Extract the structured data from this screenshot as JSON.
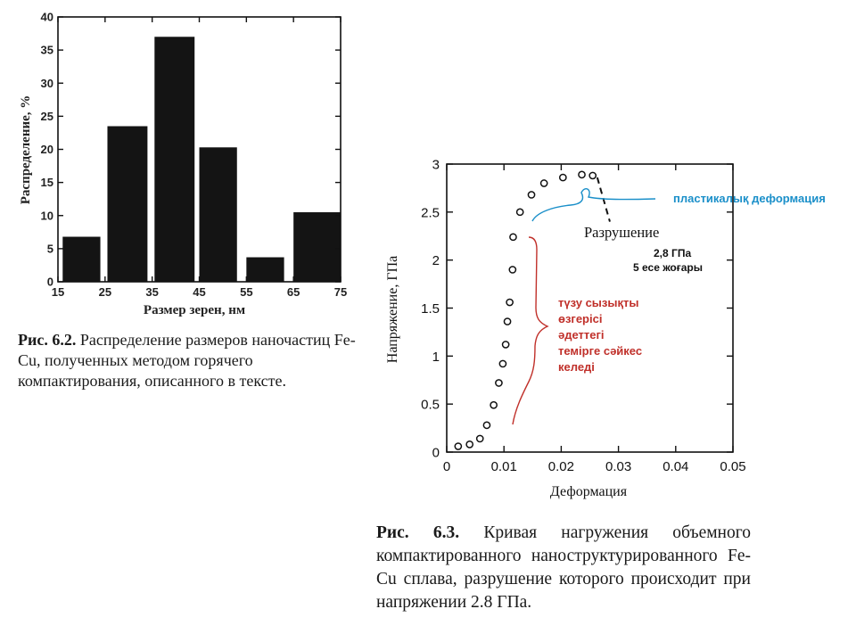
{
  "chart_data": [
    {
      "type": "bar",
      "xlabel": "Размер зерен, нм",
      "ylabel": "Распределение, %",
      "xticks": [
        "15",
        "25",
        "35",
        "45",
        "55",
        "65",
        "75"
      ],
      "yticks": [
        "0",
        "5",
        "10",
        "15",
        "20",
        "25",
        "30",
        "35",
        "40"
      ],
      "xlim": [
        15,
        75
      ],
      "ylim": [
        0,
        40
      ],
      "bars": [
        {
          "from": 16,
          "to": 24,
          "value": 6.8
        },
        {
          "from": 25.5,
          "to": 34,
          "value": 23.5
        },
        {
          "from": 35.5,
          "to": 44,
          "value": 37
        },
        {
          "from": 45,
          "to": 53,
          "value": 20.3
        },
        {
          "from": 55,
          "to": 63,
          "value": 3.7
        },
        {
          "from": 65,
          "to": 75,
          "value": 10.5
        }
      ],
      "grid": false,
      "caption_label": "Рис. 6.2.",
      "caption_text": "Распределение размеров наночастиц Fe-Cu, полученных методом горячего компактирования, описанного в тексте."
    },
    {
      "type": "scatter",
      "xlabel": "Деформация",
      "ylabel": "Напряжение, ГПа",
      "xticks": [
        "0",
        "0.01",
        "0.02",
        "0.03",
        "0.04",
        "0.05"
      ],
      "yticks": [
        "0",
        "0.5",
        "1",
        "1.5",
        "2",
        "2.5",
        "3"
      ],
      "xlim": [
        0,
        0.05
      ],
      "ylim": [
        0,
        3
      ],
      "grid": false,
      "points": [
        {
          "x": 0.002,
          "y": 0.06
        },
        {
          "x": 0.004,
          "y": 0.08
        },
        {
          "x": 0.0058,
          "y": 0.14
        },
        {
          "x": 0.007,
          "y": 0.28
        },
        {
          "x": 0.0082,
          "y": 0.49
        },
        {
          "x": 0.0091,
          "y": 0.72
        },
        {
          "x": 0.0098,
          "y": 0.92
        },
        {
          "x": 0.0103,
          "y": 1.12
        },
        {
          "x": 0.0106,
          "y": 1.36
        },
        {
          "x": 0.011,
          "y": 1.56
        },
        {
          "x": 0.0115,
          "y": 1.9
        },
        {
          "x": 0.0116,
          "y": 2.24
        },
        {
          "x": 0.0128,
          "y": 2.5
        },
        {
          "x": 0.0148,
          "y": 2.68
        },
        {
          "x": 0.017,
          "y": 2.8
        },
        {
          "x": 0.0203,
          "y": 2.86
        },
        {
          "x": 0.0236,
          "y": 2.89
        },
        {
          "x": 0.0255,
          "y": 2.88
        }
      ],
      "fracture_line": [
        {
          "x": 0.0263,
          "y": 2.86
        },
        {
          "x": 0.0285,
          "y": 2.4
        }
      ],
      "annotations": {
        "fracture_label": "Разрушение",
        "fracture_note_1": "2,8 ГПа",
        "fracture_note_2": "5 есе жоғары",
        "plastic_label": "пластикалық деформация",
        "linear_label": [
          "түзу сызықты",
          "өзгерісі",
          "әдеттегі",
          "темірге сәйкес",
          "келеді"
        ]
      },
      "colors": {
        "plastic": "#1a8fc9",
        "linear": "#c0302a"
      },
      "caption_label": "Рис. 6.3.",
      "caption_text": "Кривая нагружения объемного компактированного наноструктурированного Fe-Cu сплава, разрушение которого происходит при напряжении 2.8 ГПа."
    }
  ]
}
